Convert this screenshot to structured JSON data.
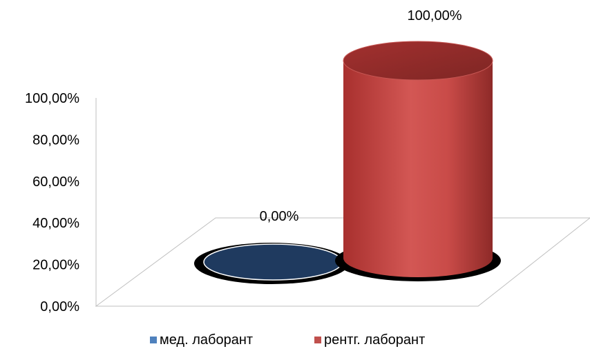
{
  "chart_data": {
    "type": "bar",
    "style": "3d-cylinder",
    "series": [
      {
        "name": "мед. лаборант",
        "value": 0.0,
        "label": "0,00%",
        "color": "#1F3A5F",
        "legend_color": "#4F81BD"
      },
      {
        "name": "рентг. лаборант",
        "value": 100.0,
        "label": "100,00%",
        "color": "#C0504D",
        "legend_color": "#C0504D"
      }
    ],
    "y_ticks": [
      "0,00%",
      "20,00%",
      "40,00%",
      "60,00%",
      "80,00%",
      "100,00%"
    ],
    "ylim": [
      0,
      100
    ],
    "grid": false,
    "legend_position": "bottom"
  }
}
